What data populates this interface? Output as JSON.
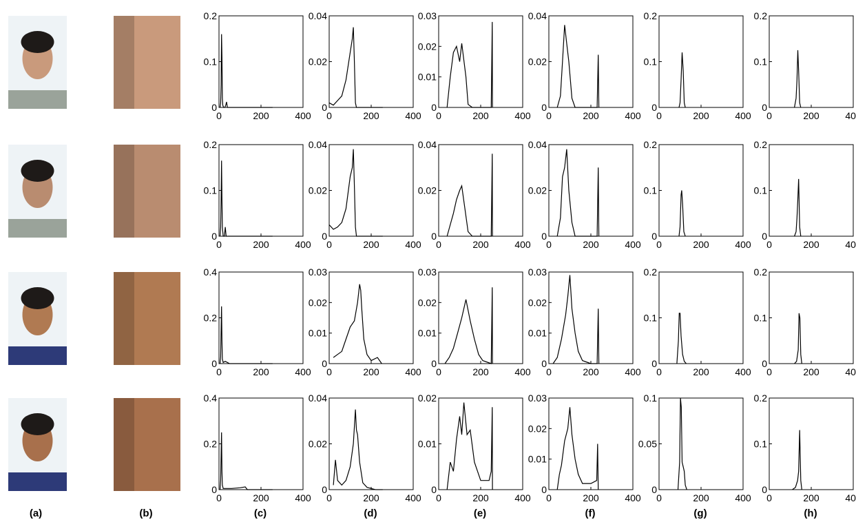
{
  "panel_labels": [
    "(a)",
    "(b)",
    "(c)",
    "(d)",
    "(e)",
    "(f)",
    "(g)",
    "(h)"
  ],
  "chart_data": [
    {
      "type": "line",
      "color": "#000000",
      "x": [
        5,
        8,
        10,
        12,
        14,
        16,
        18,
        22,
        28,
        32,
        36,
        40,
        100,
        255
      ],
      "values": [
        0,
        0.01,
        0.05,
        0.16,
        0.11,
        0.02,
        0.005,
        0,
        0,
        0.005,
        0.012,
        0,
        0,
        0
      ],
      "xlim": [
        0,
        400
      ],
      "ylim": [
        0,
        0.2
      ],
      "xticks": [
        0,
        200,
        400
      ],
      "yticks": [
        0,
        0.1,
        0.2
      ]
    },
    {
      "type": "line",
      "color": "#000000",
      "x": [
        0,
        20,
        40,
        60,
        80,
        100,
        110,
        115,
        120,
        125,
        130,
        200,
        255
      ],
      "values": [
        0.002,
        0.001,
        0.003,
        0.005,
        0.012,
        0.024,
        0.03,
        0.035,
        0.02,
        0.002,
        0,
        0,
        0
      ],
      "xlim": [
        0,
        400
      ],
      "ylim": [
        0,
        0.04
      ],
      "xticks": [
        0,
        200,
        400
      ],
      "yticks": [
        0,
        0.02,
        0.04
      ]
    },
    {
      "type": "line",
      "color": "#000000",
      "x": [
        40,
        55,
        70,
        85,
        100,
        110,
        130,
        140,
        160,
        250,
        255,
        256
      ],
      "values": [
        0,
        0.01,
        0.018,
        0.02,
        0.015,
        0.021,
        0.01,
        0.001,
        0,
        0,
        0.028,
        0
      ],
      "xlim": [
        0,
        400
      ],
      "ylim": [
        0,
        0.03
      ],
      "xticks": [
        0,
        200,
        400
      ],
      "yticks": [
        0,
        0.01,
        0.02,
        0.03
      ]
    },
    {
      "type": "line",
      "color": "#000000",
      "x": [
        40,
        55,
        65,
        75,
        85,
        95,
        110,
        125,
        140,
        230,
        235,
        238
      ],
      "values": [
        0,
        0.005,
        0.02,
        0.036,
        0.028,
        0.02,
        0.004,
        0,
        0,
        0,
        0.023,
        0
      ],
      "xlim": [
        0,
        400
      ],
      "ylim": [
        0,
        0.04
      ],
      "xticks": [
        0,
        200,
        400
      ],
      "yticks": [
        0,
        0.02,
        0.04
      ]
    },
    {
      "type": "line",
      "color": "#000000",
      "x": [
        95,
        100,
        105,
        110,
        115,
        120,
        125
      ],
      "values": [
        0,
        0.01,
        0.06,
        0.12,
        0.08,
        0.01,
        0
      ],
      "xlim": [
        0,
        400
      ],
      "ylim": [
        0,
        0.2
      ],
      "xticks": [
        0,
        200,
        400
      ],
      "yticks": [
        0,
        0.1,
        0.2
      ]
    },
    {
      "type": "line",
      "color": "#000000",
      "x": [
        120,
        128,
        132,
        136,
        140,
        145,
        150
      ],
      "values": [
        0,
        0.02,
        0.06,
        0.125,
        0.08,
        0.01,
        0
      ],
      "xlim": [
        0,
        400
      ],
      "ylim": [
        0,
        0.2
      ],
      "xticks": [
        0,
        200,
        400
      ],
      "yticks": [
        0,
        0.1,
        0.2
      ]
    },
    {
      "type": "line",
      "color": "#000000",
      "x": [
        5,
        8,
        10,
        12,
        14,
        16,
        20,
        26,
        30,
        34,
        40,
        100,
        255
      ],
      "values": [
        0,
        0.02,
        0.08,
        0.165,
        0.08,
        0.02,
        0,
        0,
        0.02,
        0,
        0,
        0,
        0
      ],
      "xlim": [
        0,
        400
      ],
      "ylim": [
        0,
        0.2
      ],
      "xticks": [
        0,
        200,
        400
      ],
      "yticks": [
        0,
        0.1,
        0.2
      ]
    },
    {
      "type": "line",
      "color": "#000000",
      "x": [
        0,
        20,
        40,
        60,
        80,
        100,
        110,
        115,
        120,
        125,
        130,
        200,
        255
      ],
      "values": [
        0.005,
        0.003,
        0.004,
        0.006,
        0.012,
        0.026,
        0.03,
        0.038,
        0.022,
        0.004,
        0,
        0,
        0
      ],
      "xlim": [
        0,
        400
      ],
      "ylim": [
        0,
        0.04
      ],
      "xticks": [
        0,
        200,
        400
      ],
      "yticks": [
        0,
        0.02,
        0.04
      ]
    },
    {
      "type": "line",
      "color": "#000000",
      "x": [
        40,
        55,
        70,
        85,
        100,
        110,
        125,
        140,
        160,
        250,
        255,
        256
      ],
      "values": [
        0,
        0.005,
        0.01,
        0.016,
        0.02,
        0.022,
        0.012,
        0.002,
        0,
        0,
        0.036,
        0
      ],
      "xlim": [
        0,
        400
      ],
      "ylim": [
        0,
        0.04
      ],
      "xticks": [
        0,
        200,
        400
      ],
      "yticks": [
        0,
        0.02,
        0.04
      ]
    },
    {
      "type": "line",
      "color": "#000000",
      "x": [
        40,
        55,
        65,
        75,
        85,
        95,
        110,
        125,
        140,
        230,
        235,
        238
      ],
      "values": [
        0,
        0.008,
        0.026,
        0.03,
        0.038,
        0.02,
        0.006,
        0,
        0,
        0,
        0.03,
        0
      ],
      "xlim": [
        0,
        400
      ],
      "ylim": [
        0,
        0.04
      ],
      "xticks": [
        0,
        200,
        400
      ],
      "yticks": [
        0,
        0.02,
        0.04
      ]
    },
    {
      "type": "line",
      "color": "#000000",
      "x": [
        95,
        100,
        105,
        108,
        112,
        118,
        125
      ],
      "values": [
        0,
        0.02,
        0.09,
        0.1,
        0.07,
        0.01,
        0
      ],
      "xlim": [
        0,
        400
      ],
      "ylim": [
        0,
        0.2
      ],
      "xticks": [
        0,
        200,
        400
      ],
      "yticks": [
        0,
        0.1,
        0.2
      ]
    },
    {
      "type": "line",
      "color": "#000000",
      "x": [
        120,
        128,
        132,
        136,
        140,
        145,
        150
      ],
      "values": [
        0,
        0.01,
        0.04,
        0.08,
        0.125,
        0.02,
        0
      ],
      "xlim": [
        0,
        400
      ],
      "ylim": [
        0,
        0.2
      ],
      "xticks": [
        0,
        200,
        400
      ],
      "yticks": [
        0,
        0.1,
        0.2
      ]
    },
    {
      "type": "line",
      "color": "#000000",
      "x": [
        5,
        8,
        10,
        12,
        14,
        16,
        20,
        30,
        50,
        100,
        255
      ],
      "values": [
        0,
        0.03,
        0.15,
        0.25,
        0.1,
        0.02,
        0.005,
        0.01,
        0,
        0,
        0
      ],
      "xlim": [
        0,
        400
      ],
      "ylim": [
        0,
        0.4
      ],
      "xticks": [
        0,
        200,
        400
      ],
      "yticks": [
        0,
        0.2,
        0.4
      ]
    },
    {
      "type": "line",
      "color": "#000000",
      "x": [
        20,
        40,
        60,
        80,
        100,
        120,
        135,
        145,
        150,
        155,
        165,
        180,
        200,
        230,
        250
      ],
      "values": [
        0.002,
        0.003,
        0.004,
        0.008,
        0.012,
        0.014,
        0.02,
        0.026,
        0.024,
        0.018,
        0.008,
        0.003,
        0.001,
        0.002,
        0
      ],
      "xlim": [
        0,
        400
      ],
      "ylim": [
        0,
        0.03
      ],
      "xticks": [
        0,
        200,
        400
      ],
      "yticks": [
        0,
        0.01,
        0.02,
        0.03
      ]
    },
    {
      "type": "line",
      "color": "#000000",
      "x": [
        30,
        50,
        70,
        90,
        110,
        130,
        150,
        170,
        190,
        210,
        250,
        255,
        256
      ],
      "values": [
        0,
        0.002,
        0.005,
        0.01,
        0.015,
        0.021,
        0.014,
        0.008,
        0.003,
        0.001,
        0,
        0.025,
        0
      ],
      "xlim": [
        0,
        400
      ],
      "ylim": [
        0,
        0.03
      ],
      "xticks": [
        0,
        200,
        400
      ],
      "yticks": [
        0,
        0.01,
        0.02,
        0.03
      ]
    },
    {
      "type": "line",
      "color": "#000000",
      "x": [
        20,
        40,
        60,
        80,
        90,
        100,
        110,
        125,
        140,
        160,
        200,
        230,
        235,
        238
      ],
      "values": [
        0,
        0.002,
        0.008,
        0.016,
        0.022,
        0.029,
        0.018,
        0.01,
        0.004,
        0.001,
        0,
        0,
        0.018,
        0
      ],
      "xlim": [
        0,
        400
      ],
      "ylim": [
        0,
        0.03
      ],
      "xticks": [
        0,
        200,
        400
      ],
      "yticks": [
        0,
        0.01,
        0.02,
        0.03
      ]
    },
    {
      "type": "line",
      "color": "#000000",
      "x": [
        85,
        92,
        96,
        100,
        105,
        112,
        120,
        130
      ],
      "values": [
        0,
        0.05,
        0.11,
        0.11,
        0.06,
        0.02,
        0.005,
        0
      ],
      "xlim": [
        0,
        400
      ],
      "ylim": [
        0,
        0.2
      ],
      "xticks": [
        0,
        200,
        400
      ],
      "yticks": [
        0,
        0.1,
        0.2
      ]
    },
    {
      "type": "line",
      "color": "#000000",
      "x": [
        120,
        130,
        138,
        142,
        146,
        150,
        155
      ],
      "values": [
        0,
        0.005,
        0.03,
        0.11,
        0.1,
        0.02,
        0
      ],
      "xlim": [
        0,
        400
      ],
      "ylim": [
        0,
        0.2
      ],
      "xticks": [
        0,
        200,
        400
      ],
      "yticks": [
        0,
        0.1,
        0.2
      ]
    },
    {
      "type": "line",
      "color": "#000000",
      "x": [
        5,
        8,
        10,
        12,
        14,
        16,
        20,
        60,
        100,
        125,
        135,
        255
      ],
      "values": [
        0,
        0.04,
        0.15,
        0.25,
        0.08,
        0.02,
        0.005,
        0.005,
        0.008,
        0.012,
        0,
        0
      ],
      "xlim": [
        0,
        400
      ],
      "ylim": [
        0,
        0.4
      ],
      "xticks": [
        0,
        200,
        400
      ],
      "yticks": [
        0,
        0.2,
        0.4
      ]
    },
    {
      "type": "line",
      "color": "#000000",
      "x": [
        20,
        30,
        40,
        60,
        80,
        100,
        115,
        125,
        130,
        135,
        145,
        160,
        180,
        220,
        255
      ],
      "values": [
        0.002,
        0.013,
        0.004,
        0.002,
        0.004,
        0.01,
        0.02,
        0.035,
        0.026,
        0.024,
        0.012,
        0.003,
        0.001,
        0,
        0
      ],
      "xlim": [
        0,
        400
      ],
      "ylim": [
        0,
        0.04
      ],
      "xticks": [
        0,
        200,
        400
      ],
      "yticks": [
        0,
        0.02,
        0.04
      ]
    },
    {
      "type": "line",
      "color": "#000000",
      "x": [
        40,
        55,
        70,
        85,
        100,
        110,
        120,
        135,
        150,
        170,
        200,
        240,
        250,
        255,
        256
      ],
      "values": [
        0,
        0.006,
        0.004,
        0.011,
        0.016,
        0.012,
        0.019,
        0.012,
        0.013,
        0.006,
        0.002,
        0.002,
        0.004,
        0.018,
        0
      ],
      "xlim": [
        0,
        400
      ],
      "ylim": [
        0,
        0.02
      ],
      "xticks": [
        0,
        200,
        400
      ],
      "yticks": [
        0,
        0.01,
        0.02
      ]
    },
    {
      "type": "line",
      "color": "#000000",
      "x": [
        40,
        50,
        60,
        75,
        90,
        100,
        110,
        125,
        140,
        160,
        200,
        228,
        232,
        235
      ],
      "values": [
        0,
        0.005,
        0.008,
        0.016,
        0.02,
        0.027,
        0.018,
        0.01,
        0.005,
        0.002,
        0.002,
        0.003,
        0.015,
        0
      ],
      "xlim": [
        0,
        400
      ],
      "ylim": [
        0,
        0.03
      ],
      "xticks": [
        0,
        200,
        400
      ],
      "yticks": [
        0,
        0.01,
        0.02,
        0.03
      ]
    },
    {
      "type": "line",
      "color": "#000000",
      "x": [
        90,
        98,
        102,
        106,
        110,
        115,
        120,
        125,
        132
      ],
      "values": [
        0,
        0.03,
        0.1,
        0.09,
        0.03,
        0.025,
        0.02,
        0.005,
        0
      ],
      "xlim": [
        0,
        400
      ],
      "ylim": [
        0,
        0.1
      ],
      "xticks": [
        0,
        200,
        400
      ],
      "yticks": [
        0,
        0.05,
        0.1
      ]
    },
    {
      "type": "line",
      "color": "#000000",
      "x": [
        110,
        125,
        135,
        140,
        145,
        150,
        155
      ],
      "values": [
        0,
        0.005,
        0.02,
        0.04,
        0.13,
        0.02,
        0
      ],
      "xlim": [
        0,
        400
      ],
      "ylim": [
        0,
        0.2
      ],
      "xticks": [
        0,
        200,
        400
      ],
      "yticks": [
        0,
        0.1,
        0.2
      ]
    }
  ]
}
